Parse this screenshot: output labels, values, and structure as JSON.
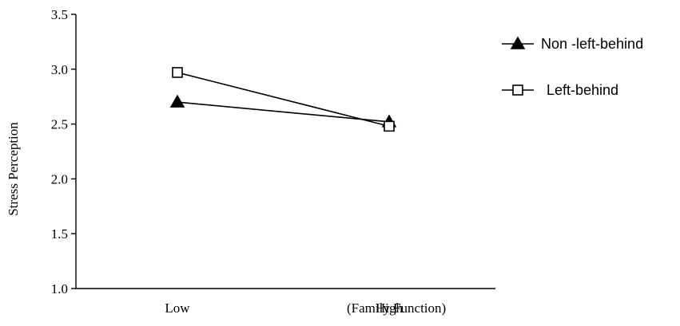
{
  "chart_data": {
    "type": "line",
    "ylabel": "Stress Perception",
    "xlabel": "",
    "categories": [
      "Low",
      "High"
    ],
    "x_axis_note": "(Family Function)",
    "ylim": [
      1.0,
      3.5
    ],
    "yticks": [
      1.0,
      1.5,
      2.0,
      2.5,
      3.0,
      3.5
    ],
    "ytick_labels": [
      "1.0",
      "1.5",
      "2.0",
      "2.5",
      "3.0",
      "3.5"
    ],
    "grid": false,
    "legend_position": "top-right",
    "series": [
      {
        "name": "Non -left-behind",
        "marker": "triangle-filled",
        "values": [
          2.7,
          2.52
        ]
      },
      {
        "name": "Left-behind",
        "marker": "square-open",
        "values": [
          2.97,
          2.48
        ]
      }
    ]
  }
}
